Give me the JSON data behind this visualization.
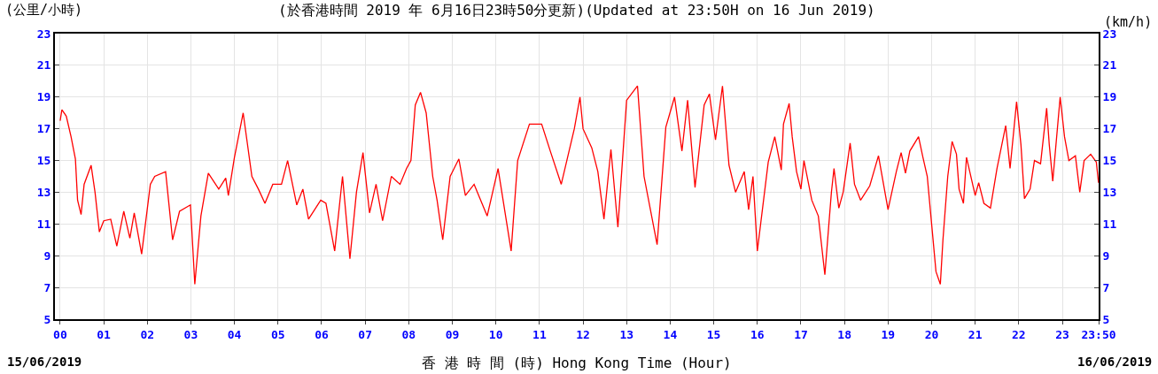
{
  "chart_data": {
    "type": "line",
    "title": "(於香港時間 2019 年 6月16日23時50分更新)(Updated at 23:50H on 16 Jun 2019)",
    "ylabel": "(公里/小時)",
    "y2label": "(km/h)",
    "xlabel": "香 港 時 間 (時) Hong Kong Time (Hour)",
    "annotations": [
      "15/06/2019",
      "16/06/2019"
    ],
    "xlim": [
      -0.12,
      23.833
    ],
    "xticks": [
      {
        "value": 0,
        "label": "00"
      },
      {
        "value": 1,
        "label": "01"
      },
      {
        "value": 2,
        "label": "02"
      },
      {
        "value": 3,
        "label": "03"
      },
      {
        "value": 4,
        "label": "04"
      },
      {
        "value": 5,
        "label": "05"
      },
      {
        "value": 6,
        "label": "06"
      },
      {
        "value": 7,
        "label": "07"
      },
      {
        "value": 8,
        "label": "08"
      },
      {
        "value": 9,
        "label": "09"
      },
      {
        "value": 10,
        "label": "10"
      },
      {
        "value": 11,
        "label": "11"
      },
      {
        "value": 12,
        "label": "12"
      },
      {
        "value": 13,
        "label": "13"
      },
      {
        "value": 14,
        "label": "14"
      },
      {
        "value": 15,
        "label": "15"
      },
      {
        "value": 16,
        "label": "16"
      },
      {
        "value": 17,
        "label": "17"
      },
      {
        "value": 18,
        "label": "18"
      },
      {
        "value": 19,
        "label": "19"
      },
      {
        "value": 20,
        "label": "20"
      },
      {
        "value": 21,
        "label": "21"
      },
      {
        "value": 22,
        "label": "22"
      },
      {
        "value": 23,
        "label": "23"
      },
      {
        "value": 23.833,
        "label": "23:50"
      }
    ],
    "ylim": [
      5,
      23
    ],
    "yticks": [
      5,
      7,
      9,
      11,
      13,
      15,
      17,
      19,
      21,
      23
    ],
    "y2lim": [
      5,
      23
    ],
    "y2ticks": [
      5,
      7,
      9,
      11,
      13,
      15,
      17,
      19,
      21,
      23
    ],
    "grid": true,
    "marker": "none",
    "line_style": "solid",
    "series": [
      {
        "color": "#ff0000",
        "x": [
          0,
          0.04,
          0.14,
          0.25,
          0.35,
          0.4,
          0.48,
          0.55,
          0.71,
          0.8,
          0.9,
          1.0,
          1.16,
          1.3,
          1.46,
          1.6,
          1.7,
          1.87,
          2.07,
          2.17,
          2.42,
          2.58,
          2.74,
          2.99,
          3.09,
          3.23,
          3.4,
          3.64,
          3.8,
          3.86,
          4.0,
          4.2,
          4.4,
          4.55,
          4.7,
          4.88,
          5.08,
          5.22,
          5.43,
          5.57,
          5.7,
          5.98,
          6.1,
          6.3,
          6.48,
          6.65,
          6.8,
          6.95,
          7.1,
          7.25,
          7.4,
          7.6,
          7.8,
          7.95,
          8.05,
          8.15,
          8.27,
          8.4,
          8.55,
          8.65,
          8.78,
          8.95,
          9.15,
          9.3,
          9.5,
          9.8,
          10.05,
          10.35,
          10.5,
          10.77,
          11.05,
          11.26,
          11.5,
          11.8,
          11.93,
          12.0,
          12.2,
          12.34,
          12.48,
          12.64,
          12.8,
          13.0,
          13.25,
          13.4,
          13.7,
          13.9,
          14.1,
          14.27,
          14.4,
          14.57,
          14.78,
          14.9,
          15.04,
          15.2,
          15.35,
          15.5,
          15.7,
          15.8,
          15.9,
          16.0,
          16.25,
          16.4,
          16.55,
          16.6,
          16.73,
          16.8,
          16.9,
          17.0,
          17.07,
          17.25,
          17.4,
          17.55,
          17.7,
          17.76,
          17.87,
          17.97,
          18.13,
          18.23,
          18.37,
          18.58,
          18.78,
          19.0,
          19.19,
          19.3,
          19.4,
          19.5,
          19.7,
          19.8,
          19.9,
          20.0,
          20.1,
          20.2,
          20.26,
          20.37,
          20.47,
          20.57,
          20.63,
          20.73,
          20.8,
          21.0,
          21.08,
          21.2,
          21.35,
          21.5,
          21.7,
          21.8,
          21.95,
          22.05,
          22.13,
          22.26,
          22.36,
          22.5,
          22.64,
          22.7,
          22.78,
          22.95,
          23.05,
          23.15,
          23.3,
          23.4,
          23.5,
          23.65,
          23.78,
          23.83
        ],
        "values": [
          17.5,
          18.2,
          17.8,
          16.5,
          15.1,
          12.5,
          11.6,
          13.5,
          14.7,
          13,
          10.5,
          11.2,
          11.3,
          9.6,
          11.8,
          10.1,
          11.7,
          9.1,
          13.5,
          14,
          14.3,
          10,
          11.8,
          12.2,
          7.2,
          11.5,
          14.2,
          13.2,
          13.9,
          12.8,
          15.2,
          18,
          14,
          13.2,
          12.3,
          13.5,
          13.5,
          15,
          12.2,
          13.2,
          11.3,
          12.5,
          12.3,
          9.3,
          14,
          8.8,
          13,
          15.5,
          11.7,
          13.5,
          11.2,
          14,
          13.5,
          14.5,
          15,
          18.5,
          19.3,
          18,
          14,
          12.5,
          10,
          14,
          15.1,
          12.8,
          13.5,
          11.5,
          14.5,
          9.3,
          15,
          17.3,
          17.3,
          15.5,
          13.5,
          17,
          19,
          17,
          15.8,
          14.3,
          11.3,
          15.7,
          10.8,
          18.8,
          19.7,
          14,
          9.7,
          17.1,
          19,
          15.6,
          18.8,
          13.3,
          18.5,
          19.2,
          16.3,
          19.7,
          14.7,
          13,
          14.3,
          11.9,
          14,
          9.3,
          14.9,
          16.5,
          14.4,
          17.3,
          18.6,
          16.5,
          14.3,
          13.2,
          15,
          12.5,
          11.5,
          7.8,
          13,
          14.5,
          12,
          13,
          16.1,
          13.5,
          12.5,
          13.4,
          15.3,
          11.9,
          14.3,
          15.5,
          14.2,
          15.6,
          16.5,
          15.2,
          14,
          11,
          8,
          7.2,
          10,
          14,
          16.2,
          15.4,
          13.2,
          12.3,
          15.2,
          12.8,
          13.6,
          12.3,
          12,
          14.5,
          17.2,
          14.5,
          18.7,
          16,
          12.6,
          13.2,
          15,
          14.8,
          18.3,
          16,
          13.7,
          19,
          16.5,
          15,
          15.3,
          13,
          15,
          15.4,
          14.9,
          13.6
        ]
      }
    ]
  }
}
